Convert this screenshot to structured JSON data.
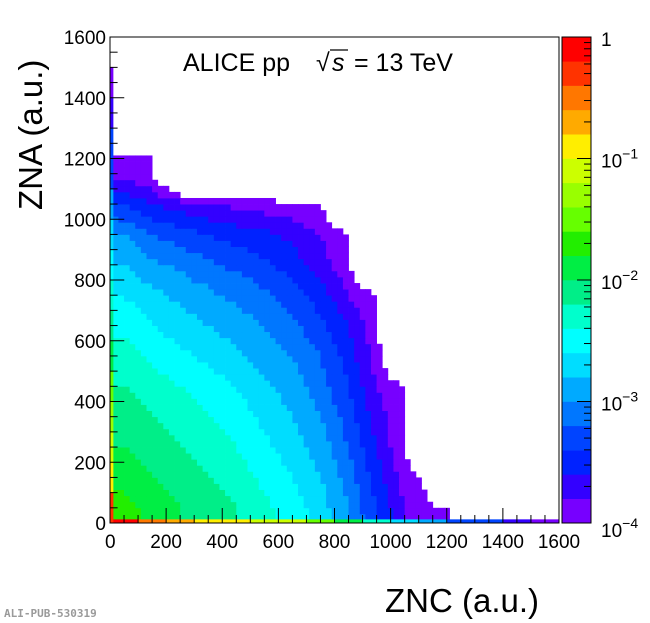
{
  "chart_data": {
    "type": "heatmap",
    "annotation": {
      "prefix": "ALICE pp",
      "sqrt": "√",
      "var": "s",
      "suffix": "= 13 TeV"
    },
    "xlabel": "ZNC (a.u.)",
    "ylabel": "ZNA (a.u.)",
    "xlim": [
      0,
      1600
    ],
    "ylim": [
      0,
      1600
    ],
    "xticks": [
      0,
      200,
      400,
      600,
      800,
      1000,
      1200,
      1400,
      1600
    ],
    "yticks": [
      0,
      200,
      400,
      600,
      800,
      1000,
      1200,
      1400,
      1600
    ],
    "xtick_labels": [
      "0",
      "200",
      "400",
      "600",
      "800",
      "1000",
      "1200",
      "1400",
      "1600"
    ],
    "ytick_labels": [
      "0",
      "200",
      "400",
      "600",
      "800",
      "1000",
      "1200",
      "1400",
      "1600"
    ],
    "z_scale": "log",
    "zlim": [
      0.0001,
      1
    ],
    "colorbar_labels": [
      {
        "base": "1",
        "exp": "",
        "log": 0
      },
      {
        "base": "10",
        "exp": "−1",
        "log": -1
      },
      {
        "base": "10",
        "exp": "−2",
        "log": -2
      },
      {
        "base": "10",
        "exp": "−3",
        "log": -3
      },
      {
        "base": "10",
        "exp": "−4",
        "log": -4
      }
    ],
    "palette": [
      "#7700ff",
      "#3300ff",
      "#0022ff",
      "#0044ff",
      "#0077ff",
      "#00aaff",
      "#00ddff",
      "#00ffff",
      "#00ffcc",
      "#00ee88",
      "#00ee44",
      "#22ee00",
      "#66ff00",
      "#99ff00",
      "#ccff00",
      "#ffee00",
      "#ffaa00",
      "#ff7700",
      "#ff3300",
      "#ff0000"
    ],
    "grid_bin_width": 100,
    "grid_log10_values_note": "rows from y=0-100 upward, columns from x=0-100 rightward",
    "grid_log10": [
      [
        -1.7,
        -1.9,
        -2.0,
        -2.1,
        -2.2,
        -2.35,
        -2.5,
        -2.7,
        -3.0,
        -3.4,
        -3.8,
        -4.0
      ],
      [
        -1.9,
        -2.0,
        -2.1,
        -2.2,
        -2.3,
        -2.45,
        -2.6,
        -2.8,
        -3.1,
        -3.5,
        -3.9,
        -4.1
      ],
      [
        -2.0,
        -2.1,
        -2.2,
        -2.3,
        -2.4,
        -2.55,
        -2.7,
        -2.9,
        -3.2,
        -3.6,
        -4.0,
        null
      ],
      [
        -2.1,
        -2.2,
        -2.3,
        -2.4,
        -2.5,
        -2.65,
        -2.8,
        -3.0,
        -3.3,
        -3.7,
        -4.0,
        null
      ],
      [
        -2.2,
        -2.3,
        -2.4,
        -2.5,
        -2.6,
        -2.75,
        -2.9,
        -3.1,
        -3.4,
        -3.8,
        -4.0,
        null
      ],
      [
        -2.3,
        -2.45,
        -2.55,
        -2.65,
        -2.75,
        -2.9,
        -3.0,
        -3.2,
        -3.5,
        -3.9,
        null,
        null
      ],
      [
        -2.45,
        -2.6,
        -2.7,
        -2.8,
        -2.9,
        -3.0,
        -3.15,
        -3.35,
        -3.6,
        -3.95,
        null,
        null
      ],
      [
        -2.6,
        -2.75,
        -2.85,
        -2.95,
        -3.05,
        -3.15,
        -3.3,
        -3.5,
        -3.8,
        -4.0,
        null,
        null
      ],
      [
        -2.8,
        -2.95,
        -3.05,
        -3.15,
        -3.25,
        -3.35,
        -3.5,
        -3.7,
        -3.95,
        null,
        null,
        null
      ],
      [
        -3.0,
        -3.2,
        -3.3,
        -3.4,
        -3.5,
        -3.55,
        -3.65,
        -3.8,
        -4.0,
        null,
        null,
        null
      ],
      [
        -3.4,
        -3.6,
        -3.7,
        -3.8,
        -3.85,
        -3.9,
        -3.95,
        -4.0,
        null,
        null,
        null,
        null
      ],
      [
        -3.9,
        -4.0,
        null,
        null,
        null,
        null,
        null,
        null,
        null,
        null,
        null,
        null
      ]
    ],
    "bottom_band_log10": [
      -0.2,
      -0.6,
      -0.8,
      -0.9,
      -1.0,
      -1.05,
      -1.2,
      -1.5,
      -1.9,
      -2.3,
      -2.7,
      -3.0,
      -3.2,
      -3.4,
      -3.7,
      -3.95
    ],
    "left_band_log10": [
      -0.3,
      -0.9,
      -1.1,
      -1.3,
      -1.6,
      -1.9,
      -2.1,
      -2.3,
      -2.5,
      -2.7,
      -2.9,
      -3.2,
      -3.4,
      -3.7,
      -3.9,
      null
    ]
  },
  "watermark": "ALI-PUB-530319"
}
